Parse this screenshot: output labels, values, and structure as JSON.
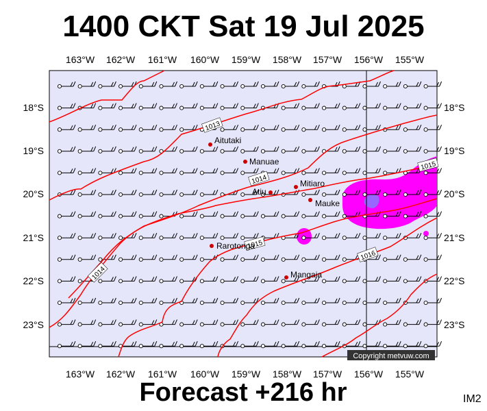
{
  "title": "1400 CKT Sat 19 Jul 2025",
  "footer": "Forecast +216 hr",
  "corner_label": "IM2",
  "copyright": "Copyright metvuw.com",
  "colors": {
    "plot_bg": "#e6e6fa",
    "isobar": "#ff0000",
    "precip_light": "#ff00ff",
    "precip_heavy": "#9966ff",
    "island": "#cc0000"
  },
  "axes": {
    "lon_labels": [
      "163°W",
      "162°W",
      "161°W",
      "160°W",
      "159°W",
      "158°W",
      "157°W",
      "156°W",
      "155°W"
    ],
    "lat_labels": [
      "18°S",
      "19°S",
      "20°S",
      "21°S",
      "22°S",
      "23°S"
    ]
  },
  "places": [
    {
      "name": "Aitutaki"
    },
    {
      "name": "Manuae"
    },
    {
      "name": "Atiu"
    },
    {
      "name": "Mitiaro"
    },
    {
      "name": "Mauke"
    },
    {
      "name": "Rarotonga"
    },
    {
      "name": "Mangaia"
    }
  ],
  "isobar_labels": [
    "1013",
    "1014",
    "1014",
    "1015",
    "1015",
    "1016"
  ],
  "wind_barbs": "wind-barb-grid"
}
